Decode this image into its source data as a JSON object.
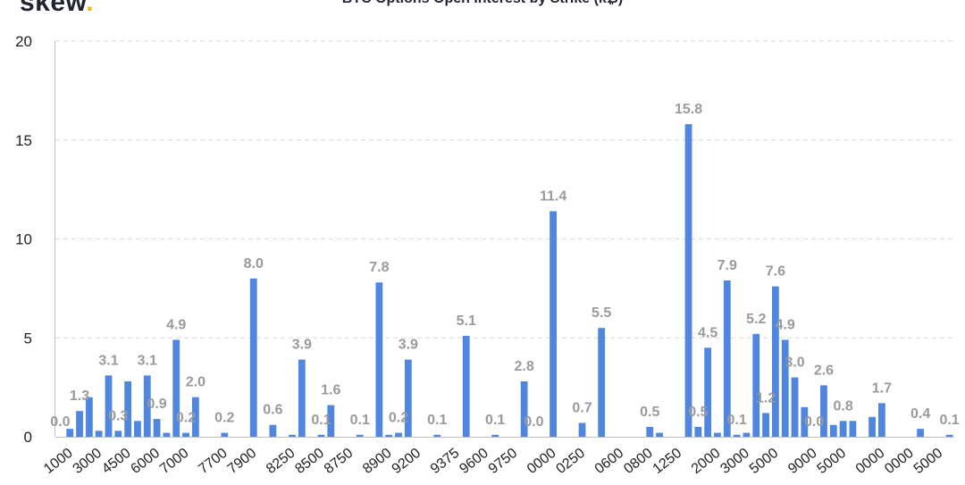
{
  "header": {
    "logo_text": "skew",
    "logo_dot": ".",
    "title": "BTC Options Open Interest by Strike (k₿)"
  },
  "colors": {
    "bar": "#4f86e0",
    "grid": "#d9d9d9",
    "axis": "#bfbfbf",
    "label": "#9a9a9a"
  },
  "chart_data": {
    "type": "bar",
    "title": "BTC Options Open Interest by Strike (k₿)",
    "xlabel": "",
    "ylabel": "",
    "ylim": [
      0,
      20
    ],
    "yticks": [
      0,
      5,
      10,
      15,
      20
    ],
    "grid": "horizontal dashed",
    "values": [
      0.0,
      0.4,
      1.3,
      2.0,
      0.3,
      3.1,
      0.3,
      2.8,
      0.8,
      3.1,
      0.9,
      0.2,
      4.9,
      0.2,
      2.0,
      0.0,
      0.0,
      0.2,
      0.0,
      0.0,
      8.0,
      0.0,
      0.6,
      0.0,
      0.1,
      3.9,
      0.0,
      0.1,
      1.6,
      0.0,
      0.0,
      0.1,
      0.0,
      7.8,
      0.1,
      0.2,
      3.9,
      0.0,
      0.0,
      0.1,
      0.0,
      0.0,
      5.1,
      0.0,
      0.0,
      0.1,
      0.0,
      0.0,
      2.8,
      0.0,
      0.0,
      11.4,
      0.0,
      0.0,
      0.7,
      0.0,
      5.5,
      0.0,
      0.0,
      0.0,
      0.0,
      0.5,
      0.2,
      0.0,
      0.0,
      15.8,
      0.5,
      4.5,
      0.2,
      7.9,
      0.1,
      0.2,
      5.2,
      1.2,
      7.6,
      4.9,
      3.0,
      1.5,
      0.0,
      2.6,
      0.6,
      0.8,
      0.8,
      0.0,
      1.0,
      1.7,
      0.0,
      0.0,
      0.0,
      0.4,
      0.0,
      0.0,
      0.1
    ],
    "data_labels": [
      {
        "index": 0,
        "text": "0.0"
      },
      {
        "index": 2,
        "text": "1.3"
      },
      {
        "index": 5,
        "text": "3.1"
      },
      {
        "index": 6,
        "text": "0.3"
      },
      {
        "index": 9,
        "text": "3.1"
      },
      {
        "index": 10,
        "text": "0.9"
      },
      {
        "index": 12,
        "text": "4.9"
      },
      {
        "index": 13,
        "text": "0.2"
      },
      {
        "index": 14,
        "text": "2.0"
      },
      {
        "index": 17,
        "text": "0.2"
      },
      {
        "index": 20,
        "text": "8.0"
      },
      {
        "index": 22,
        "text": "0.6"
      },
      {
        "index": 25,
        "text": "3.9"
      },
      {
        "index": 27,
        "text": "0.1"
      },
      {
        "index": 28,
        "text": "1.6"
      },
      {
        "index": 31,
        "text": "0.1"
      },
      {
        "index": 33,
        "text": "7.8"
      },
      {
        "index": 35,
        "text": "0.2"
      },
      {
        "index": 36,
        "text": "3.9"
      },
      {
        "index": 39,
        "text": "0.1"
      },
      {
        "index": 42,
        "text": "5.1"
      },
      {
        "index": 45,
        "text": "0.1"
      },
      {
        "index": 48,
        "text": "2.8"
      },
      {
        "index": 49,
        "text": "0.0"
      },
      {
        "index": 51,
        "text": "11.4"
      },
      {
        "index": 54,
        "text": "0.7"
      },
      {
        "index": 56,
        "text": "5.5"
      },
      {
        "index": 61,
        "text": "0.5"
      },
      {
        "index": 65,
        "text": "15.8"
      },
      {
        "index": 66,
        "text": "0.5"
      },
      {
        "index": 67,
        "text": "4.5"
      },
      {
        "index": 69,
        "text": "7.9"
      },
      {
        "index": 70,
        "text": "0.1"
      },
      {
        "index": 72,
        "text": "5.2"
      },
      {
        "index": 73,
        "text": "1.2"
      },
      {
        "index": 74,
        "text": "7.6"
      },
      {
        "index": 75,
        "text": "4.9"
      },
      {
        "index": 76,
        "text": "3.0"
      },
      {
        "index": 78,
        "text": "0.0"
      },
      {
        "index": 79,
        "text": "2.6"
      },
      {
        "index": 81,
        "text": "0.8"
      },
      {
        "index": 85,
        "text": "1.7"
      },
      {
        "index": 89,
        "text": "0.4"
      },
      {
        "index": 92,
        "text": "0.1"
      }
    ],
    "xtick_labels": [
      {
        "index": 1,
        "text": "1000"
      },
      {
        "index": 4,
        "text": "3000"
      },
      {
        "index": 7,
        "text": "4500"
      },
      {
        "index": 10,
        "text": "6000"
      },
      {
        "index": 13,
        "text": "7000"
      },
      {
        "index": 17,
        "text": "7700"
      },
      {
        "index": 20,
        "text": "7900"
      },
      {
        "index": 24,
        "text": "8250"
      },
      {
        "index": 27,
        "text": "8500"
      },
      {
        "index": 30,
        "text": "8750"
      },
      {
        "index": 34,
        "text": "8900"
      },
      {
        "index": 37,
        "text": "9200"
      },
      {
        "index": 41,
        "text": "9375"
      },
      {
        "index": 44,
        "text": "9600"
      },
      {
        "index": 47,
        "text": "9750"
      },
      {
        "index": 51,
        "text": "0000"
      },
      {
        "index": 54,
        "text": "0250"
      },
      {
        "index": 58,
        "text": "0600"
      },
      {
        "index": 61,
        "text": "0800"
      },
      {
        "index": 64,
        "text": "1250"
      },
      {
        "index": 68,
        "text": "2000"
      },
      {
        "index": 71,
        "text": "3000"
      },
      {
        "index": 74,
        "text": "5000"
      },
      {
        "index": 78,
        "text": "9000"
      },
      {
        "index": 81,
        "text": "5000"
      },
      {
        "index": 85,
        "text": "0000"
      },
      {
        "index": 88,
        "text": "0000"
      },
      {
        "index": 91,
        "text": "5000"
      }
    ]
  }
}
